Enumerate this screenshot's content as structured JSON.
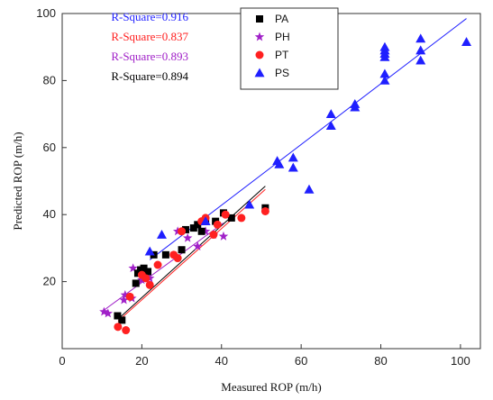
{
  "chart_data": {
    "type": "scatter",
    "xlabel": "Measured ROP (m/h)",
    "ylabel": "Predicted ROP (m/h)",
    "xlim": [
      0,
      105
    ],
    "ylim": [
      0,
      100
    ],
    "xticks": [
      0,
      20,
      40,
      60,
      80,
      100
    ],
    "yticks": [
      20,
      40,
      60,
      80,
      100
    ],
    "legend_position": "top-center",
    "series": [
      {
        "name": "PA",
        "marker": "square",
        "color": "#000000",
        "r_square_label": "R-Square=0.894",
        "points": [
          [
            13.9,
            9.8
          ],
          [
            15,
            8.5
          ],
          [
            18.5,
            19.5
          ],
          [
            19,
            22.5
          ],
          [
            19.7,
            23.5
          ],
          [
            20.5,
            24
          ],
          [
            21.5,
            23
          ],
          [
            23,
            28
          ],
          [
            26,
            28
          ],
          [
            30,
            29.5
          ],
          [
            31,
            35.5
          ],
          [
            33,
            36
          ],
          [
            34,
            37
          ],
          [
            35,
            35
          ],
          [
            36,
            38
          ],
          [
            38.5,
            38
          ],
          [
            40.5,
            40.5
          ],
          [
            42.5,
            39
          ],
          [
            51,
            42
          ]
        ],
        "fit": [
          [
            14,
            8.8
          ],
          [
            51,
            48.5
          ]
        ]
      },
      {
        "name": "PH",
        "marker": "star",
        "color": "#a020c8",
        "r_square_label": "R-Square=0.893",
        "points": [
          [
            10.5,
            11
          ],
          [
            11.5,
            10.5
          ],
          [
            15.5,
            14.5
          ],
          [
            15.8,
            16
          ],
          [
            17.5,
            15
          ],
          [
            17.8,
            24
          ],
          [
            20,
            20.5
          ],
          [
            22,
            21
          ],
          [
            29,
            35
          ],
          [
            31.5,
            33
          ],
          [
            34,
            30.5
          ],
          [
            36,
            35
          ],
          [
            38,
            34
          ],
          [
            40.5,
            33.5
          ]
        ],
        "fit": [
          [
            10.5,
            11.5
          ],
          [
            40.5,
            37.5
          ]
        ]
      },
      {
        "name": "PT",
        "marker": "circle",
        "color": "#ff2020",
        "r_square_label": "R-Square=0.837",
        "points": [
          [
            14,
            6.5
          ],
          [
            16,
            5.5
          ],
          [
            17,
            15.5
          ],
          [
            20,
            22
          ],
          [
            21,
            21
          ],
          [
            22,
            19
          ],
          [
            24,
            25
          ],
          [
            28,
            28
          ],
          [
            29,
            27
          ],
          [
            30,
            35
          ],
          [
            35,
            38
          ],
          [
            36,
            39
          ],
          [
            38,
            34
          ],
          [
            39,
            37
          ],
          [
            41,
            40
          ],
          [
            45,
            39
          ],
          [
            51,
            41
          ]
        ],
        "fit": [
          [
            14,
            8.2
          ],
          [
            51,
            47.5
          ]
        ]
      },
      {
        "name": "PS",
        "marker": "triangle",
        "color": "#1f1fff",
        "r_square_label": "R-Square=0.916",
        "points": [
          [
            22,
            29
          ],
          [
            25,
            34
          ],
          [
            36,
            38
          ],
          [
            47,
            43
          ],
          [
            54,
            56
          ],
          [
            54.5,
            55
          ],
          [
            58,
            57
          ],
          [
            58,
            54
          ],
          [
            62,
            47.5
          ],
          [
            67.5,
            70
          ],
          [
            67.5,
            66.5
          ],
          [
            73.5,
            73
          ],
          [
            73.5,
            72
          ],
          [
            81,
            90
          ],
          [
            81,
            89
          ],
          [
            81,
            88
          ],
          [
            81,
            87
          ],
          [
            81,
            82
          ],
          [
            81,
            80
          ],
          [
            90,
            92.5
          ],
          [
            90,
            89
          ],
          [
            90,
            86
          ],
          [
            101.5,
            91.5
          ]
        ],
        "fit": [
          [
            22,
            26.5
          ],
          [
            101.5,
            98.5
          ]
        ]
      }
    ]
  }
}
